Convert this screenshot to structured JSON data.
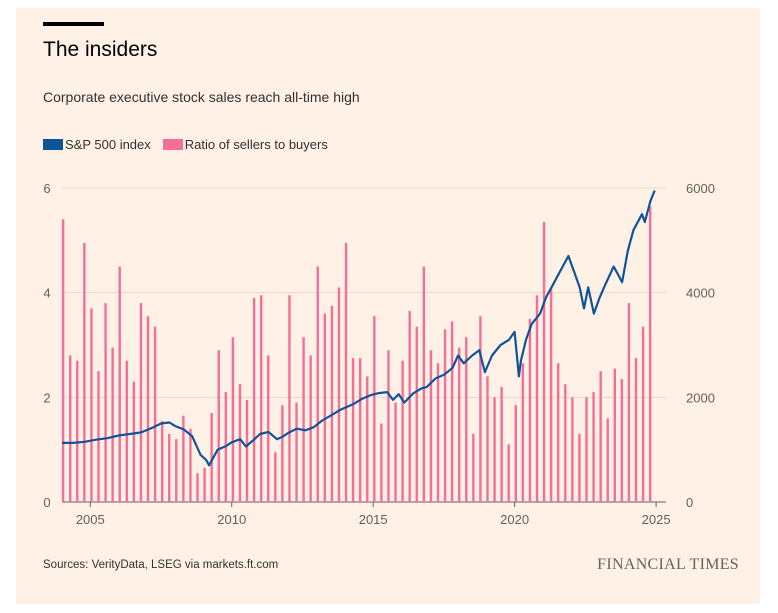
{
  "title": "The insiders",
  "subtitle": "Corporate executive stock sales reach all-time high",
  "legend": [
    {
      "label": "S&P 500 index",
      "color": "#0f5499"
    },
    {
      "label": "Ratio of sellers to buyers",
      "color": "#f46f97"
    }
  ],
  "source": "Sources: VerityData, LSEG via markets.ft.com",
  "brand": "FINANCIAL TIMES",
  "colors": {
    "background": "#fff1e5",
    "grid": "#e6d9ce",
    "sp500": "#0f5499",
    "ratio": "#f46f97"
  },
  "chart_data": {
    "type": "bar+line",
    "x_range": [
      2004,
      2025.35
    ],
    "x_ticks": [
      {
        "value": 2005,
        "label": "2005"
      },
      {
        "value": 2010,
        "label": "2010"
      },
      {
        "value": 2015,
        "label": "2015"
      },
      {
        "value": 2020,
        "label": "2020"
      },
      {
        "value": 2025,
        "label": "2025"
      }
    ],
    "y_left": {
      "range": [
        0,
        6
      ],
      "ticks": [
        {
          "value": 0,
          "label": "0"
        },
        {
          "value": 2,
          "label": "2"
        },
        {
          "value": 4,
          "label": "4"
        },
        {
          "value": 6,
          "label": "6"
        }
      ],
      "series": "Ratio of sellers to buyers"
    },
    "y_right": {
      "range": [
        0,
        6000
      ],
      "ticks": [
        {
          "value": 0,
          "label": "0"
        },
        {
          "value": 2000,
          "label": "2000"
        },
        {
          "value": 4000,
          "label": "4000"
        },
        {
          "value": 6000,
          "label": "6000"
        }
      ],
      "series": "S&P 500 index"
    },
    "ratio_bars": {
      "name": "Ratio of sellers to buyers",
      "start": 2004.04,
      "step": 0.25,
      "values": [
        5.4,
        2.8,
        2.7,
        4.95,
        3.7,
        2.5,
        3.8,
        2.95,
        4.5,
        2.7,
        2.3,
        3.8,
        3.55,
        3.35,
        1.55,
        1.3,
        1.2,
        1.65,
        1.4,
        0.55,
        0.65,
        1.7,
        2.9,
        2.1,
        3.15,
        2.25,
        1.95,
        3.9,
        3.95,
        2.8,
        0.95,
        1.85,
        3.95,
        1.9,
        3.15,
        2.8,
        4.5,
        3.6,
        3.75,
        4.1,
        4.95,
        2.75,
        2.75,
        2.4,
        3.55,
        1.5,
        2.9,
        1.9,
        2.7,
        3.65,
        3.35,
        4.5,
        2.9,
        2.65,
        3.3,
        3.45,
        2.95,
        3.15,
        1.3,
        3.55,
        2.4,
        2.0,
        2.2,
        1.1,
        1.85,
        2.65,
        3.5,
        3.95,
        5.35,
        4.1,
        2.65,
        2.25,
        2.0,
        1.3,
        2.0,
        2.1,
        2.5,
        1.6,
        2.55,
        2.35,
        3.8,
        2.75,
        3.35,
        5.65
      ]
    },
    "sp500_line": {
      "name": "S&P 500 index",
      "x": [
        2004.0,
        2004.4,
        2004.8,
        2005.2,
        2005.6,
        2006.0,
        2006.4,
        2006.8,
        2007.2,
        2007.5,
        2007.8,
        2008.0,
        2008.3,
        2008.6,
        2008.9,
        2009.1,
        2009.2,
        2009.5,
        2009.8,
        2010.0,
        2010.3,
        2010.5,
        2010.8,
        2011.0,
        2011.3,
        2011.6,
        2011.8,
        2012.0,
        2012.3,
        2012.6,
        2012.9,
        2013.2,
        2013.5,
        2013.8,
        2014.0,
        2014.3,
        2014.6,
        2014.9,
        2015.2,
        2015.5,
        2015.7,
        2015.9,
        2016.1,
        2016.4,
        2016.7,
        2016.9,
        2017.2,
        2017.5,
        2017.8,
        2018.0,
        2018.2,
        2018.5,
        2018.75,
        2018.95,
        2019.2,
        2019.5,
        2019.8,
        2020.0,
        2020.15,
        2020.22,
        2020.4,
        2020.6,
        2020.9,
        2021.1,
        2021.4,
        2021.7,
        2021.9,
        2022.1,
        2022.3,
        2022.45,
        2022.6,
        2022.8,
        2023.0,
        2023.2,
        2023.5,
        2023.8,
        2024.0,
        2024.2,
        2024.5,
        2024.6,
        2024.8,
        2024.95
      ],
      "y": [
        1130,
        1130,
        1150,
        1190,
        1220,
        1270,
        1300,
        1330,
        1420,
        1500,
        1520,
        1450,
        1390,
        1260,
        900,
        800,
        700,
        1000,
        1070,
        1140,
        1200,
        1060,
        1200,
        1300,
        1340,
        1200,
        1250,
        1320,
        1400,
        1370,
        1430,
        1560,
        1650,
        1750,
        1800,
        1870,
        1970,
        2040,
        2080,
        2100,
        1950,
        2060,
        1900,
        2070,
        2170,
        2200,
        2360,
        2430,
        2560,
        2800,
        2650,
        2800,
        2900,
        2480,
        2800,
        3000,
        3100,
        3250,
        2400,
        2700,
        3100,
        3400,
        3600,
        3900,
        4200,
        4500,
        4700,
        4400,
        4100,
        3700,
        4100,
        3600,
        3900,
        4150,
        4500,
        4200,
        4800,
        5200,
        5500,
        5350,
        5750,
        5950
      ]
    }
  }
}
